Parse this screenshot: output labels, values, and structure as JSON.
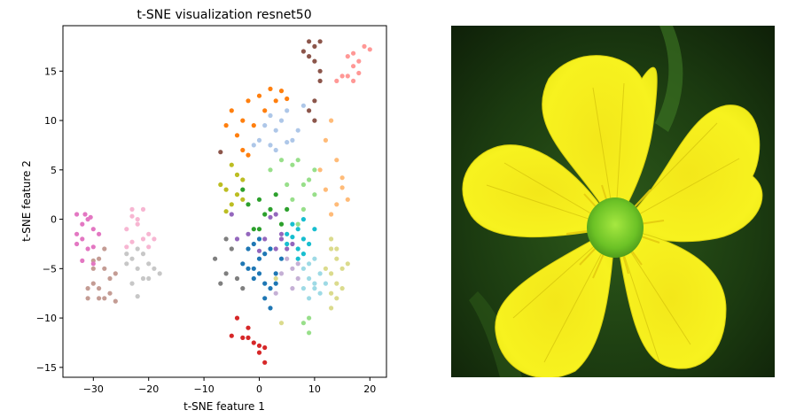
{
  "chart_data": {
    "type": "scatter",
    "title": "t-SNE visualization resnet50",
    "xlabel": "t-SNE feature 1",
    "ylabel": "t-SNE feature 2",
    "xlim": [
      -35.5,
      23
    ],
    "ylim": [
      -16,
      19.6
    ],
    "xticks": [
      -30,
      -20,
      -10,
      0,
      10,
      20
    ],
    "yticks": [
      -15,
      -10,
      -5,
      0,
      5,
      10,
      15
    ],
    "grid": false,
    "legend": "none",
    "series": [
      {
        "color": "#1f77b4",
        "points": [
          [
            -2,
            -3
          ],
          [
            -1,
            -2.5
          ],
          [
            0,
            -4
          ],
          [
            1,
            -3.5
          ],
          [
            -3,
            -4.5
          ],
          [
            -2,
            -5
          ],
          [
            0,
            -5.5
          ],
          [
            1,
            -6.5
          ],
          [
            2,
            -7
          ],
          [
            3,
            -5.5
          ],
          [
            -1,
            -6
          ],
          [
            0,
            -2
          ],
          [
            2,
            -3
          ],
          [
            4,
            -4
          ],
          [
            3,
            -6.5
          ],
          [
            1,
            -8
          ],
          [
            2,
            -9
          ],
          [
            -1,
            -5
          ]
        ]
      },
      {
        "color": "#aec7e8",
        "points": [
          [
            0,
            8
          ],
          [
            2,
            7.5
          ],
          [
            3,
            9
          ],
          [
            5,
            11
          ],
          [
            6,
            8
          ],
          [
            4,
            10
          ],
          [
            1,
            9.5
          ],
          [
            7,
            9
          ],
          [
            8,
            11.5
          ],
          [
            3,
            7
          ],
          [
            5,
            7.8
          ],
          [
            2,
            10.5
          ],
          [
            -1,
            7.5
          ]
        ]
      },
      {
        "color": "#ff7f0e",
        "points": [
          [
            -5,
            11
          ],
          [
            -3,
            10
          ],
          [
            -2,
            12
          ],
          [
            -1,
            9.5
          ],
          [
            1,
            11
          ],
          [
            2,
            13.2
          ],
          [
            3,
            12
          ],
          [
            4,
            13
          ],
          [
            -4,
            8.5
          ],
          [
            -3,
            7
          ],
          [
            0,
            12.5
          ],
          [
            -2,
            6.5
          ],
          [
            -6,
            9.5
          ],
          [
            5,
            12.2
          ]
        ]
      },
      {
        "color": "#ffbb78",
        "points": [
          [
            13,
            10
          ],
          [
            12,
            8
          ],
          [
            14,
            6
          ],
          [
            11,
            5
          ],
          [
            15,
            4.2
          ],
          [
            16,
            2
          ],
          [
            14,
            1.5
          ],
          [
            12,
            3
          ],
          [
            13,
            0.5
          ],
          [
            15,
            3.2
          ]
        ]
      },
      {
        "color": "#2ca02c",
        "points": [
          [
            -2,
            1.5
          ],
          [
            0,
            2
          ],
          [
            1,
            0.5
          ],
          [
            2,
            1
          ],
          [
            -1,
            -1
          ],
          [
            3,
            2.5
          ],
          [
            5,
            1
          ],
          [
            -3,
            3
          ],
          [
            4,
            -0.5
          ],
          [
            0,
            -1
          ]
        ]
      },
      {
        "color": "#98df8a",
        "points": [
          [
            2,
            5
          ],
          [
            4,
            6
          ],
          [
            6,
            5.5
          ],
          [
            7,
            6
          ],
          [
            6,
            2
          ],
          [
            8,
            3.5
          ],
          [
            9,
            4
          ],
          [
            10,
            5
          ],
          [
            8,
            1
          ],
          [
            7,
            -0.5
          ],
          [
            9,
            -10
          ],
          [
            8,
            -10.5
          ],
          [
            9,
            -11.5
          ],
          [
            5,
            3.5
          ],
          [
            10,
            2.5
          ]
        ]
      },
      {
        "color": "#d62728",
        "points": [
          [
            -4,
            -10
          ],
          [
            -2,
            -11
          ],
          [
            -3,
            -12
          ],
          [
            -1,
            -12.5
          ],
          [
            0,
            -13.5
          ],
          [
            1,
            -13
          ],
          [
            1,
            -14.5
          ],
          [
            -5,
            -11.8
          ],
          [
            -2,
            -12
          ],
          [
            0,
            -12.8
          ]
        ]
      },
      {
        "color": "#ff9896",
        "points": [
          [
            16,
            16.5
          ],
          [
            17,
            15.5
          ],
          [
            18,
            16
          ],
          [
            16,
            14.5
          ],
          [
            17,
            14
          ],
          [
            15,
            14.5
          ],
          [
            18,
            14.8
          ],
          [
            14,
            14
          ],
          [
            17,
            16.8
          ],
          [
            19,
            17.5
          ],
          [
            20,
            17.2
          ]
        ]
      },
      {
        "color": "#9467bd",
        "points": [
          [
            -2,
            -1.5
          ],
          [
            0,
            -3.2
          ],
          [
            2,
            0.2
          ],
          [
            4,
            -1.5
          ],
          [
            6,
            -2.5
          ],
          [
            -4,
            -2
          ],
          [
            -5,
            0.5
          ],
          [
            4,
            -2
          ],
          [
            1,
            -2
          ],
          [
            5,
            -3
          ],
          [
            3,
            -3
          ],
          [
            3,
            0.5
          ]
        ]
      },
      {
        "color": "#c5b0d5",
        "points": [
          [
            6,
            -5
          ],
          [
            5,
            -4
          ],
          [
            7,
            -6
          ],
          [
            4,
            -5.5
          ],
          [
            3,
            -7.5
          ],
          [
            6,
            -7
          ],
          [
            7,
            -4.5
          ]
        ]
      },
      {
        "color": "#8c564b",
        "points": [
          [
            8,
            17
          ],
          [
            9,
            16.5
          ],
          [
            10,
            17.5
          ],
          [
            11,
            18
          ],
          [
            9,
            18
          ],
          [
            10,
            16
          ],
          [
            11,
            15
          ],
          [
            11,
            14
          ],
          [
            9,
            11
          ],
          [
            10,
            10
          ],
          [
            10,
            12
          ],
          [
            -7,
            6.8
          ]
        ]
      },
      {
        "color": "#c49c94",
        "points": [
          [
            -29,
            -4
          ],
          [
            -28,
            -5
          ],
          [
            -27,
            -6
          ],
          [
            -30,
            -6.5
          ],
          [
            -29,
            -7
          ],
          [
            -28,
            -8
          ],
          [
            -27,
            -7.5
          ],
          [
            -26,
            -5.5
          ],
          [
            -30,
            -5
          ],
          [
            -31,
            -7
          ],
          [
            -29,
            -8
          ],
          [
            -26,
            -8.3
          ],
          [
            -28,
            -3
          ],
          [
            -31,
            -8
          ],
          [
            -30,
            -4.2
          ]
        ]
      },
      {
        "color": "#e377c2",
        "points": [
          [
            -33,
            0.5
          ],
          [
            -32,
            -0.5
          ],
          [
            -31,
            0
          ],
          [
            -30,
            -1
          ],
          [
            -32,
            -2
          ],
          [
            -33,
            -2.5
          ],
          [
            -31,
            -3
          ],
          [
            -30,
            -2.8
          ],
          [
            -29,
            -1.5
          ],
          [
            -32,
            -4.2
          ],
          [
            -30,
            -4.5
          ],
          [
            -33,
            -1.5
          ],
          [
            -31.5,
            0.5
          ],
          [
            -30.5,
            0.2
          ]
        ]
      },
      {
        "color": "#f7b6d2",
        "points": [
          [
            -24,
            -1
          ],
          [
            -22,
            -0.5
          ],
          [
            -21,
            -2
          ],
          [
            -23,
            -2.3
          ],
          [
            -20,
            -2.8
          ],
          [
            -19,
            -2
          ],
          [
            -22,
            0
          ],
          [
            -23,
            1
          ],
          [
            -21,
            1
          ],
          [
            -24,
            -2.8
          ],
          [
            -20,
            -1.5
          ],
          [
            -23,
            0.3
          ]
        ]
      },
      {
        "color": "#7f7f7f",
        "points": [
          [
            -8,
            -4
          ],
          [
            -6,
            -2
          ],
          [
            -5,
            -3
          ],
          [
            -6,
            -5.5
          ],
          [
            -7,
            -6.5
          ],
          [
            -4,
            -6
          ],
          [
            -3,
            -7
          ]
        ]
      },
      {
        "color": "#c7c7c7",
        "points": [
          [
            -23,
            -4
          ],
          [
            -21,
            -3.5
          ],
          [
            -22,
            -5
          ],
          [
            -20,
            -4.5
          ],
          [
            -24,
            -4.5
          ],
          [
            -19,
            -5
          ],
          [
            -21,
            -6
          ],
          [
            -23,
            -6.5
          ],
          [
            -22,
            -7.8
          ],
          [
            -20,
            -6
          ],
          [
            -18,
            -5.5
          ],
          [
            -22,
            -3
          ],
          [
            -24,
            -3.5
          ]
        ]
      },
      {
        "color": "#bcbd22",
        "points": [
          [
            -5,
            1.5
          ],
          [
            -4,
            2.5
          ],
          [
            -3,
            4
          ],
          [
            -6,
            3
          ],
          [
            -5,
            5.5
          ],
          [
            -4,
            4.5
          ],
          [
            -7,
            3.5
          ],
          [
            -3,
            2
          ],
          [
            -6,
            0.8
          ]
        ]
      },
      {
        "color": "#dbdb8d",
        "points": [
          [
            13,
            -3
          ],
          [
            14,
            -4
          ],
          [
            13,
            -5.5
          ],
          [
            15,
            -5
          ],
          [
            14,
            -6.5
          ],
          [
            13,
            -7.5
          ],
          [
            15,
            -7
          ],
          [
            14,
            -8
          ],
          [
            13,
            -9
          ],
          [
            16,
            -4.5
          ],
          [
            13,
            -2
          ],
          [
            14,
            -3
          ],
          [
            12,
            -5
          ],
          [
            4,
            -10.5
          ],
          [
            3,
            -6
          ]
        ]
      },
      {
        "color": "#17becf",
        "points": [
          [
            5,
            -1.5
          ],
          [
            6,
            -0.5
          ],
          [
            7,
            -1
          ],
          [
            8,
            -2
          ],
          [
            7,
            -3
          ],
          [
            5,
            -2.5
          ],
          [
            6,
            -1.8
          ],
          [
            8,
            -3.5
          ],
          [
            9,
            -2.5
          ],
          [
            10,
            -1
          ],
          [
            8,
            0
          ],
          [
            7,
            -4
          ]
        ]
      },
      {
        "color": "#9edae5",
        "points": [
          [
            8,
            -5
          ],
          [
            9,
            -6
          ],
          [
            10,
            -6.5
          ],
          [
            11,
            -5.5
          ],
          [
            10,
            -7
          ],
          [
            9,
            -8
          ],
          [
            8,
            -7
          ],
          [
            11,
            -7.5
          ],
          [
            10,
            -4
          ],
          [
            9,
            -4.5
          ],
          [
            12,
            -6.5
          ]
        ]
      }
    ]
  },
  "photo": {
    "subject": "yellow buttercup flower",
    "colors": {
      "background": "#1b3a10",
      "petal": "#f6f21c",
      "center": "#7dd62a"
    }
  }
}
